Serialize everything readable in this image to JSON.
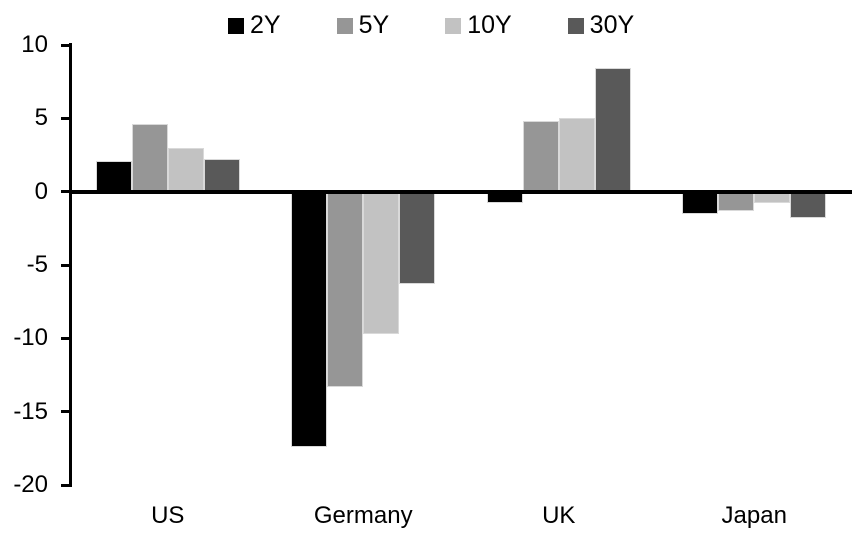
{
  "chart_data": {
    "type": "bar",
    "title": "",
    "xlabel": "",
    "ylabel": "",
    "categories": [
      "US",
      "Germany",
      "UK",
      "Japan"
    ],
    "series": [
      {
        "name": "2Y",
        "color": "#000000",
        "values": [
          2.1,
          -17.4,
          -0.8,
          -1.5
        ]
      },
      {
        "name": "5Y",
        "color": "#969696",
        "values": [
          4.6,
          -13.3,
          4.8,
          -1.3
        ]
      },
      {
        "name": "10Y",
        "color": "#c2c2c2",
        "values": [
          3.0,
          -9.7,
          5.0,
          -0.8
        ]
      },
      {
        "name": "30Y",
        "color": "#595959",
        "values": [
          2.2,
          -6.3,
          8.4,
          -1.8
        ]
      }
    ],
    "ylim": [
      -20,
      10
    ],
    "y_ticks": [
      10,
      5,
      0,
      -5,
      -10,
      -15,
      -20
    ],
    "legend_position": "top-center",
    "grid": false,
    "axis_color": "#000000",
    "background_color": "#ffffff"
  }
}
